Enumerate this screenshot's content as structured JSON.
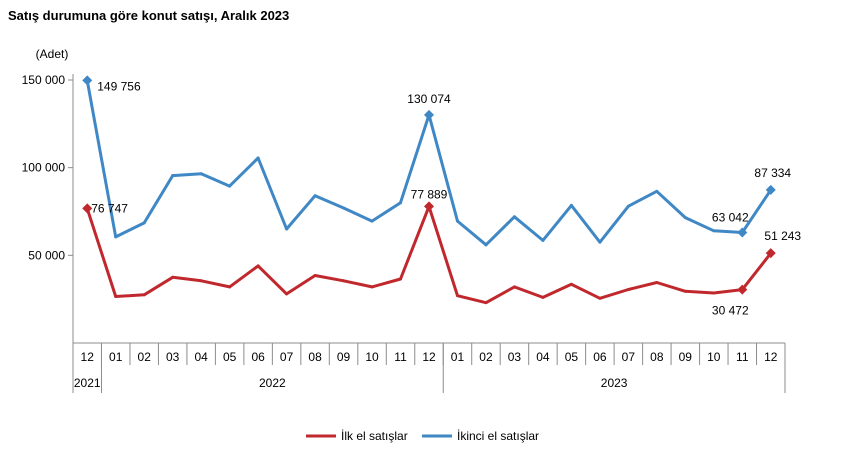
{
  "chart_data": {
    "type": "line",
    "title": "Satış durumuna göre konut satışı, Aralık 2023",
    "ylabel": "(Adet)",
    "ylim": [
      0,
      150000
    ],
    "yticks": [
      50000,
      100000,
      150000
    ],
    "ytick_labels": [
      "50 000",
      "100 000",
      "150 000"
    ],
    "categories": [
      "12",
      "01",
      "02",
      "03",
      "04",
      "05",
      "06",
      "07",
      "08",
      "09",
      "10",
      "11",
      "12",
      "01",
      "02",
      "03",
      "04",
      "05",
      "06",
      "07",
      "08",
      "09",
      "10",
      "11",
      "12"
    ],
    "year_groups": [
      {
        "label": "2021",
        "start": 0,
        "end": 0
      },
      {
        "label": "2022",
        "start": 1,
        "end": 12
      },
      {
        "label": "2023",
        "start": 13,
        "end": 24
      }
    ],
    "series": [
      {
        "name": "İlk el satışlar",
        "color": "#c0282d",
        "values": [
          76747,
          26500,
          27500,
          37500,
          35500,
          32000,
          44000,
          28000,
          38500,
          35500,
          32000,
          36500,
          77889,
          27000,
          23000,
          32000,
          26000,
          33500,
          25500,
          30500,
          34500,
          29500,
          28500,
          30472,
          51243
        ],
        "labels": [
          {
            "index": 0,
            "text": "76 747"
          },
          {
            "index": 12,
            "text": "77 889"
          },
          {
            "index": 23,
            "text": "30 472"
          },
          {
            "index": 24,
            "text": "51 243"
          }
        ]
      },
      {
        "name": "İkinci el satışlar",
        "color": "#3f88c5",
        "values": [
          149756,
          60500,
          68500,
          95500,
          96500,
          89500,
          105500,
          65000,
          84000,
          77000,
          69500,
          80000,
          130074,
          69500,
          56000,
          72000,
          58500,
          78500,
          57500,
          78000,
          86500,
          71500,
          64000,
          63042,
          87334
        ],
        "labels": [
          {
            "index": 0,
            "text": "149 756"
          },
          {
            "index": 12,
            "text": "130 074"
          },
          {
            "index": 23,
            "text": "63 042"
          },
          {
            "index": 24,
            "text": "87 334"
          }
        ]
      }
    ],
    "marker_indices": [
      0,
      12,
      23,
      24
    ],
    "legend": "bottom-center"
  }
}
